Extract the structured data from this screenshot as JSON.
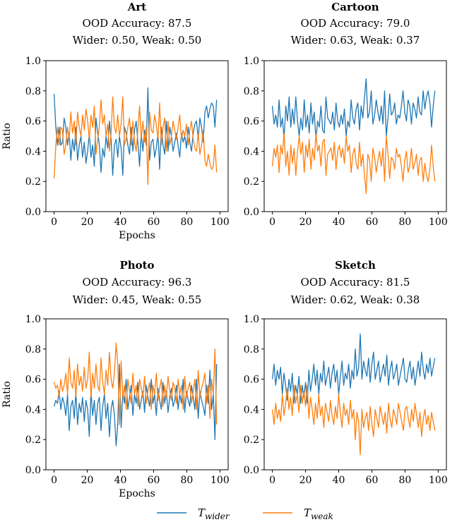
{
  "legend": {
    "wider_label": "T",
    "wider_sub": "wider",
    "weak_label": "T",
    "weak_sub": "weak"
  },
  "colors": {
    "wider": "#1f77b4",
    "weak": "#ff7f0e"
  },
  "chart_data": [
    {
      "type": "line",
      "title": "Art",
      "subtitle": [
        "OOD Accuracy: 87.5",
        "Wider: 0.50, Weak: 0.50"
      ],
      "xlabel": "Epochs",
      "ylabel": "Ratio",
      "xlim": [
        0,
        100
      ],
      "ylim": [
        0.0,
        1.0
      ],
      "xticks": [
        "0",
        "20",
        "40",
        "60",
        "80",
        "100"
      ],
      "yticks": [
        "0.0",
        "0.2",
        "0.4",
        "0.6",
        "0.8",
        "1.0"
      ],
      "series": [
        {
          "key": "wider",
          "values": [
            0.78,
            0.56,
            0.44,
            0.56,
            0.44,
            0.46,
            0.62,
            0.56,
            0.44,
            0.52,
            0.34,
            0.48,
            0.4,
            0.56,
            0.34,
            0.44,
            0.5,
            0.36,
            0.46,
            0.32,
            0.4,
            0.52,
            0.36,
            0.44,
            0.3,
            0.62,
            0.52,
            0.44,
            0.26,
            0.42,
            0.36,
            0.5,
            0.42,
            0.6,
            0.48,
            0.24,
            0.44,
            0.48,
            0.36,
            0.5,
            0.42,
            0.24,
            0.56,
            0.52,
            0.44,
            0.38,
            0.56,
            0.4,
            0.54,
            0.6,
            0.46,
            0.3,
            0.52,
            0.4,
            0.54,
            0.44,
            0.82,
            0.34,
            0.46,
            0.48,
            0.36,
            0.42,
            0.52,
            0.28,
            0.56,
            0.44,
            0.38,
            0.6,
            0.4,
            0.56,
            0.5,
            0.4,
            0.46,
            0.52,
            0.44,
            0.36,
            0.52,
            0.46,
            0.5,
            0.42,
            0.56,
            0.46,
            0.4,
            0.52,
            0.58,
            0.6,
            0.48,
            0.62,
            0.56,
            0.46,
            0.66,
            0.7,
            0.62,
            0.68,
            0.72,
            0.7,
            0.56,
            0.74
          ]
        },
        {
          "key": "weak",
          "values": [
            0.22,
            0.44,
            0.56,
            0.44,
            0.56,
            0.54,
            0.38,
            0.44,
            0.56,
            0.48,
            0.66,
            0.52,
            0.6,
            0.44,
            0.66,
            0.56,
            0.5,
            0.64,
            0.54,
            0.68,
            0.6,
            0.48,
            0.64,
            0.56,
            0.7,
            0.38,
            0.48,
            0.56,
            0.74,
            0.58,
            0.64,
            0.5,
            0.58,
            0.4,
            0.52,
            0.76,
            0.56,
            0.52,
            0.64,
            0.5,
            0.58,
            0.76,
            0.44,
            0.48,
            0.56,
            0.62,
            0.44,
            0.6,
            0.46,
            0.4,
            0.54,
            0.7,
            0.48,
            0.6,
            0.46,
            0.56,
            0.18,
            0.66,
            0.54,
            0.52,
            0.64,
            0.58,
            0.48,
            0.72,
            0.44,
            0.56,
            0.62,
            0.4,
            0.6,
            0.44,
            0.5,
            0.6,
            0.54,
            0.48,
            0.56,
            0.64,
            0.48,
            0.54,
            0.5,
            0.58,
            0.44,
            0.54,
            0.6,
            0.48,
            0.42,
            0.4,
            0.52,
            0.38,
            0.44,
            0.54,
            0.34,
            0.3,
            0.38,
            0.32,
            0.28,
            0.3,
            0.44,
            0.26
          ]
        }
      ]
    },
    {
      "type": "line",
      "title": "Cartoon",
      "subtitle": [
        "OOD Accuracy: 79.0",
        "Wider: 0.63, Weak: 0.37"
      ],
      "xlabel": "",
      "ylabel": "",
      "xlim": [
        0,
        100
      ],
      "ylim": [
        0.0,
        1.0
      ],
      "xticks": [
        "0",
        "20",
        "40",
        "60",
        "80",
        "100"
      ],
      "yticks": [
        "0.0",
        "0.2",
        "0.4",
        "0.6",
        "0.8",
        "1.0"
      ],
      "series": [
        {
          "key": "wider",
          "values": [
            0.7,
            0.58,
            0.64,
            0.56,
            0.74,
            0.56,
            0.62,
            0.48,
            0.7,
            0.6,
            0.76,
            0.56,
            0.68,
            0.58,
            0.76,
            0.6,
            0.5,
            0.62,
            0.54,
            0.74,
            0.56,
            0.64,
            0.52,
            0.72,
            0.58,
            0.66,
            0.48,
            0.6,
            0.56,
            0.7,
            0.54,
            0.52,
            0.76,
            0.62,
            0.6,
            0.58,
            0.66,
            0.54,
            0.72,
            0.6,
            0.56,
            0.64,
            0.58,
            0.68,
            0.5,
            0.6,
            0.56,
            0.74,
            0.62,
            0.58,
            0.68,
            0.72,
            0.54,
            0.7,
            0.62,
            0.76,
            0.88,
            0.62,
            0.66,
            0.8,
            0.58,
            0.64,
            0.74,
            0.66,
            0.6,
            0.7,
            0.58,
            0.8,
            0.5,
            0.62,
            0.78,
            0.64,
            0.66,
            0.72,
            0.58,
            0.64,
            0.62,
            0.7,
            0.8,
            0.66,
            0.6,
            0.74,
            0.7,
            0.58,
            0.72,
            0.68,
            0.62,
            0.76,
            0.66,
            0.64,
            0.8,
            0.68,
            0.76,
            0.8,
            0.72,
            0.56,
            0.7,
            0.8
          ]
        },
        {
          "key": "weak",
          "values": [
            0.3,
            0.42,
            0.36,
            0.44,
            0.26,
            0.44,
            0.38,
            0.52,
            0.3,
            0.4,
            0.24,
            0.44,
            0.32,
            0.42,
            0.24,
            0.4,
            0.5,
            0.38,
            0.46,
            0.26,
            0.44,
            0.36,
            0.48,
            0.28,
            0.42,
            0.34,
            0.52,
            0.4,
            0.44,
            0.3,
            0.46,
            0.48,
            0.24,
            0.38,
            0.4,
            0.42,
            0.34,
            0.46,
            0.28,
            0.4,
            0.44,
            0.36,
            0.42,
            0.32,
            0.5,
            0.4,
            0.44,
            0.26,
            0.38,
            0.42,
            0.32,
            0.28,
            0.46,
            0.3,
            0.38,
            0.24,
            0.12,
            0.38,
            0.34,
            0.2,
            0.42,
            0.36,
            0.26,
            0.34,
            0.4,
            0.3,
            0.42,
            0.2,
            0.5,
            0.38,
            0.22,
            0.36,
            0.34,
            0.28,
            0.42,
            0.36,
            0.38,
            0.3,
            0.2,
            0.34,
            0.4,
            0.26,
            0.3,
            0.42,
            0.28,
            0.32,
            0.38,
            0.24,
            0.34,
            0.36,
            0.2,
            0.32,
            0.24,
            0.2,
            0.28,
            0.44,
            0.3,
            0.2
          ]
        }
      ]
    },
    {
      "type": "line",
      "title": "Photo",
      "subtitle": [
        "OOD Accuracy: 96.3",
        "Wider: 0.45, Weak: 0.55"
      ],
      "xlabel": "Epochs",
      "ylabel": "Ratio",
      "xlim": [
        0,
        100
      ],
      "ylim": [
        0.0,
        1.0
      ],
      "xticks": [
        "0",
        "20",
        "40",
        "60",
        "80",
        "100"
      ],
      "yticks": [
        "0.0",
        "0.2",
        "0.4",
        "0.6",
        "0.8",
        "1.0"
      ],
      "series": [
        {
          "key": "wider",
          "values": [
            0.42,
            0.46,
            0.44,
            0.52,
            0.4,
            0.48,
            0.44,
            0.36,
            0.5,
            0.26,
            0.42,
            0.46,
            0.34,
            0.52,
            0.3,
            0.44,
            0.38,
            0.48,
            0.32,
            0.46,
            0.4,
            0.22,
            0.52,
            0.36,
            0.46,
            0.3,
            0.44,
            0.48,
            0.26,
            0.42,
            0.5,
            0.34,
            0.44,
            0.22,
            0.4,
            0.46,
            0.36,
            0.16,
            0.3,
            0.7,
            0.28,
            0.52,
            0.44,
            0.6,
            0.4,
            0.48,
            0.56,
            0.36,
            0.5,
            0.44,
            0.58,
            0.4,
            0.46,
            0.52,
            0.38,
            0.56,
            0.48,
            0.42,
            0.6,
            0.44,
            0.5,
            0.36,
            0.54,
            0.46,
            0.4,
            0.58,
            0.44,
            0.52,
            0.38,
            0.48,
            0.54,
            0.42,
            0.46,
            0.56,
            0.4,
            0.5,
            0.44,
            0.6,
            0.38,
            0.52,
            0.46,
            0.42,
            0.56,
            0.48,
            0.4,
            0.6,
            0.34,
            0.52,
            0.46,
            0.42,
            0.36,
            0.56,
            0.44,
            0.66,
            0.4,
            0.5,
            0.2,
            0.7
          ]
        },
        {
          "key": "weak",
          "values": [
            0.58,
            0.54,
            0.56,
            0.48,
            0.6,
            0.52,
            0.56,
            0.64,
            0.5,
            0.74,
            0.58,
            0.54,
            0.66,
            0.48,
            0.7,
            0.56,
            0.62,
            0.52,
            0.68,
            0.54,
            0.6,
            0.78,
            0.48,
            0.64,
            0.54,
            0.7,
            0.56,
            0.52,
            0.74,
            0.58,
            0.5,
            0.66,
            0.56,
            0.78,
            0.6,
            0.54,
            0.64,
            0.84,
            0.7,
            0.3,
            0.72,
            0.48,
            0.56,
            0.4,
            0.6,
            0.52,
            0.44,
            0.64,
            0.5,
            0.56,
            0.42,
            0.6,
            0.54,
            0.48,
            0.62,
            0.44,
            0.52,
            0.58,
            0.4,
            0.56,
            0.5,
            0.64,
            0.46,
            0.54,
            0.6,
            0.42,
            0.56,
            0.48,
            0.62,
            0.52,
            0.46,
            0.58,
            0.54,
            0.44,
            0.6,
            0.5,
            0.56,
            0.4,
            0.62,
            0.48,
            0.54,
            0.58,
            0.44,
            0.52,
            0.6,
            0.4,
            0.66,
            0.48,
            0.54,
            0.58,
            0.64,
            0.44,
            0.56,
            0.34,
            0.6,
            0.5,
            0.8,
            0.3
          ]
        }
      ]
    },
    {
      "type": "line",
      "title": "Sketch",
      "subtitle": [
        "OOD Accuracy: 81.5",
        "Wider: 0.62, Weak: 0.38"
      ],
      "xlabel": "",
      "ylabel": "",
      "xlim": [
        0,
        100
      ],
      "ylim": [
        0.0,
        1.0
      ],
      "xticks": [
        "0",
        "20",
        "40",
        "60",
        "80",
        "100"
      ],
      "yticks": [
        "0.0",
        "0.2",
        "0.4",
        "0.6",
        "0.8",
        "1.0"
      ],
      "series": [
        {
          "key": "wider",
          "values": [
            0.6,
            0.7,
            0.56,
            0.66,
            0.6,
            0.68,
            0.5,
            0.64,
            0.56,
            0.46,
            0.6,
            0.52,
            0.64,
            0.44,
            0.56,
            0.5,
            0.62,
            0.44,
            0.56,
            0.48,
            0.58,
            0.44,
            0.66,
            0.52,
            0.6,
            0.7,
            0.56,
            0.66,
            0.5,
            0.64,
            0.58,
            0.72,
            0.56,
            0.62,
            0.68,
            0.54,
            0.64,
            0.7,
            0.58,
            0.66,
            0.5,
            0.62,
            0.72,
            0.56,
            0.64,
            0.6,
            0.7,
            0.54,
            0.66,
            0.6,
            0.8,
            0.62,
            0.68,
            0.9,
            0.6,
            0.72,
            0.66,
            0.62,
            0.74,
            0.58,
            0.7,
            0.78,
            0.6,
            0.66,
            0.72,
            0.58,
            0.64,
            0.7,
            0.62,
            0.76,
            0.56,
            0.66,
            0.72,
            0.6,
            0.64,
            0.7,
            0.56,
            0.62,
            0.68,
            0.74,
            0.6,
            0.58,
            0.66,
            0.72,
            0.6,
            0.68,
            0.56,
            0.64,
            0.72,
            0.62,
            0.78,
            0.66,
            0.6,
            0.7,
            0.64,
            0.74,
            0.62,
            0.68,
            0.74
          ]
        },
        {
          "key": "weak",
          "values": [
            0.4,
            0.3,
            0.44,
            0.34,
            0.4,
            0.32,
            0.5,
            0.36,
            0.44,
            0.54,
            0.4,
            0.48,
            0.36,
            0.56,
            0.44,
            0.5,
            0.38,
            0.56,
            0.44,
            0.52,
            0.42,
            0.56,
            0.34,
            0.48,
            0.4,
            0.3,
            0.44,
            0.34,
            0.5,
            0.36,
            0.42,
            0.28,
            0.44,
            0.38,
            0.32,
            0.46,
            0.36,
            0.3,
            0.42,
            0.34,
            0.5,
            0.38,
            0.28,
            0.44,
            0.36,
            0.4,
            0.3,
            0.46,
            0.34,
            0.4,
            0.2,
            0.38,
            0.32,
            0.1,
            0.4,
            0.28,
            0.34,
            0.38,
            0.26,
            0.42,
            0.3,
            0.22,
            0.4,
            0.34,
            0.28,
            0.42,
            0.36,
            0.3,
            0.38,
            0.24,
            0.44,
            0.34,
            0.28,
            0.4,
            0.36,
            0.3,
            0.44,
            0.38,
            0.32,
            0.26,
            0.4,
            0.42,
            0.34,
            0.28,
            0.4,
            0.32,
            0.44,
            0.36,
            0.28,
            0.38,
            0.22,
            0.34,
            0.4,
            0.3,
            0.36,
            0.26,
            0.38,
            0.32,
            0.26
          ]
        }
      ]
    }
  ]
}
